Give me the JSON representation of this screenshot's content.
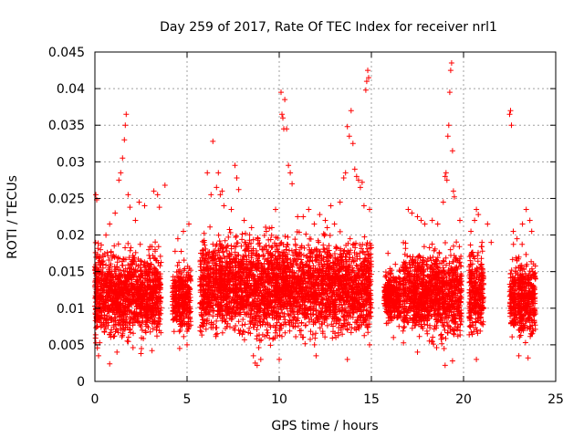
{
  "chart_data": {
    "type": "scatter",
    "title": "Day 259 of 2017, Rate Of TEC Index for receiver nrl1",
    "xlabel": "GPS time / hours",
    "ylabel": "ROTI / TECUs",
    "xlim": [
      0,
      25
    ],
    "ylim": [
      0,
      0.045
    ],
    "grid": true,
    "marker": "+",
    "marker_color": "#ff0000",
    "x_ticks": [
      0,
      5,
      10,
      15,
      20,
      25
    ],
    "x_tick_labels": [
      "0",
      "5",
      "10",
      "15",
      "20",
      "25"
    ],
    "y_ticks": [
      0,
      0.005,
      0.01,
      0.015,
      0.02,
      0.025,
      0.03,
      0.035,
      0.04,
      0.045
    ],
    "y_tick_labels": [
      "0",
      "0.005",
      "0.01",
      "0.015",
      "0.02",
      "0.025",
      "0.03",
      "0.035",
      "0.04",
      "0.045"
    ],
    "coverage": [
      {
        "x": [
          0.0,
          3.6
        ],
        "y": [
          0.004,
          0.02
        ]
      },
      {
        "x": [
          4.2,
          5.2
        ],
        "y": [
          0.005,
          0.018
        ]
      },
      {
        "x": [
          5.7,
          15.0
        ],
        "y": [
          0.004,
          0.022
        ]
      },
      {
        "x": [
          15.7,
          16.6
        ],
        "y": [
          0.007,
          0.016
        ]
      },
      {
        "x": [
          16.7,
          19.9
        ],
        "y": [
          0.004,
          0.02
        ]
      },
      {
        "x": [
          20.3,
          21.1
        ],
        "y": [
          0.004,
          0.02
        ]
      },
      {
        "x": [
          22.5,
          23.9
        ],
        "y": [
          0.004,
          0.019
        ]
      }
    ],
    "points": [
      [
        0.05,
        0.0255
      ],
      [
        0.1,
        0.0248
      ],
      [
        0.3,
        0.018
      ],
      [
        0.6,
        0.02
      ],
      [
        0.8,
        0.0215
      ],
      [
        1.1,
        0.023
      ],
      [
        1.3,
        0.0275
      ],
      [
        1.4,
        0.0285
      ],
      [
        1.5,
        0.0305
      ],
      [
        1.6,
        0.033
      ],
      [
        1.65,
        0.035
      ],
      [
        1.7,
        0.0365
      ],
      [
        1.8,
        0.0255
      ],
      [
        1.9,
        0.0238
      ],
      [
        2.2,
        0.022
      ],
      [
        2.4,
        0.0245
      ],
      [
        2.7,
        0.024
      ],
      [
        3.2,
        0.026
      ],
      [
        3.4,
        0.0255
      ],
      [
        3.5,
        0.0238
      ],
      [
        3.8,
        0.0268
      ],
      [
        0.2,
        0.0035
      ],
      [
        0.8,
        0.0024
      ],
      [
        1.2,
        0.004
      ],
      [
        2.5,
        0.0038
      ],
      [
        3.1,
        0.0042
      ],
      [
        4.5,
        0.0195
      ],
      [
        4.8,
        0.0205
      ],
      [
        5.1,
        0.0215
      ],
      [
        4.6,
        0.0045
      ],
      [
        5.0,
        0.005
      ],
      [
        6.1,
        0.0285
      ],
      [
        6.3,
        0.0255
      ],
      [
        6.4,
        0.0328
      ],
      [
        6.6,
        0.0265
      ],
      [
        6.7,
        0.0285
      ],
      [
        6.8,
        0.0255
      ],
      [
        6.9,
        0.026
      ],
      [
        7.0,
        0.024
      ],
      [
        7.4,
        0.0235
      ],
      [
        7.6,
        0.0295
      ],
      [
        7.7,
        0.0278
      ],
      [
        7.8,
        0.0262
      ],
      [
        8.1,
        0.022
      ],
      [
        8.5,
        0.021
      ],
      [
        8.6,
        0.0035
      ],
      [
        8.7,
        0.0025
      ],
      [
        8.8,
        0.0022
      ],
      [
        9.0,
        0.003
      ],
      [
        9.3,
        0.0205
      ],
      [
        9.6,
        0.021
      ],
      [
        9.8,
        0.0235
      ],
      [
        10.1,
        0.0395
      ],
      [
        10.15,
        0.0365
      ],
      [
        10.2,
        0.036
      ],
      [
        10.25,
        0.0345
      ],
      [
        10.3,
        0.0385
      ],
      [
        10.4,
        0.0345
      ],
      [
        10.5,
        0.0295
      ],
      [
        10.6,
        0.0285
      ],
      [
        10.7,
        0.027
      ],
      [
        11.0,
        0.0225
      ],
      [
        11.3,
        0.0225
      ],
      [
        11.6,
        0.0235
      ],
      [
        11.9,
        0.0215
      ],
      [
        12.2,
        0.0228
      ],
      [
        12.5,
        0.022
      ],
      [
        12.8,
        0.024
      ],
      [
        13.0,
        0.0215
      ],
      [
        13.3,
        0.0245
      ],
      [
        13.5,
        0.0278
      ],
      [
        13.6,
        0.0285
      ],
      [
        13.7,
        0.0348
      ],
      [
        13.8,
        0.0335
      ],
      [
        13.9,
        0.037
      ],
      [
        14.0,
        0.0325
      ],
      [
        14.1,
        0.029
      ],
      [
        14.2,
        0.028
      ],
      [
        14.3,
        0.0275
      ],
      [
        14.4,
        0.0265
      ],
      [
        14.5,
        0.0272
      ],
      [
        14.6,
        0.024
      ],
      [
        14.7,
        0.0398
      ],
      [
        14.75,
        0.041
      ],
      [
        14.8,
        0.0425
      ],
      [
        14.85,
        0.0415
      ],
      [
        14.9,
        0.0235
      ],
      [
        10.0,
        0.003
      ],
      [
        12.0,
        0.0035
      ],
      [
        13.7,
        0.003
      ],
      [
        14.9,
        0.005
      ],
      [
        15.9,
        0.0175
      ],
      [
        16.1,
        0.0152
      ],
      [
        16.3,
        0.016
      ],
      [
        16.2,
        0.006
      ],
      [
        16.5,
        0.0075
      ],
      [
        17.0,
        0.0235
      ],
      [
        17.2,
        0.023
      ],
      [
        17.5,
        0.0225
      ],
      [
        17.7,
        0.022
      ],
      [
        17.9,
        0.0215
      ],
      [
        18.3,
        0.022
      ],
      [
        18.6,
        0.0215
      ],
      [
        18.9,
        0.0245
      ],
      [
        19.0,
        0.028
      ],
      [
        19.05,
        0.0285
      ],
      [
        19.1,
        0.0275
      ],
      [
        19.15,
        0.0335
      ],
      [
        19.2,
        0.035
      ],
      [
        19.25,
        0.0395
      ],
      [
        19.3,
        0.0425
      ],
      [
        19.35,
        0.0435
      ],
      [
        19.4,
        0.0315
      ],
      [
        19.45,
        0.026
      ],
      [
        19.5,
        0.0252
      ],
      [
        19.8,
        0.022
      ],
      [
        19.4,
        0.0028
      ],
      [
        19.0,
        0.0022
      ],
      [
        17.5,
        0.004
      ],
      [
        20.4,
        0.0205
      ],
      [
        20.6,
        0.022
      ],
      [
        20.7,
        0.0235
      ],
      [
        20.8,
        0.0228
      ],
      [
        21.0,
        0.019
      ],
      [
        20.7,
        0.003
      ],
      [
        21.3,
        0.0215
      ],
      [
        21.5,
        0.019
      ],
      [
        22.5,
        0.0365
      ],
      [
        22.55,
        0.037
      ],
      [
        22.6,
        0.035
      ],
      [
        22.7,
        0.0205
      ],
      [
        22.9,
        0.0195
      ],
      [
        23.2,
        0.0215
      ],
      [
        23.4,
        0.0235
      ],
      [
        23.6,
        0.022
      ],
      [
        23.7,
        0.0205
      ],
      [
        23.0,
        0.0035
      ],
      [
        23.5,
        0.0032
      ]
    ]
  }
}
